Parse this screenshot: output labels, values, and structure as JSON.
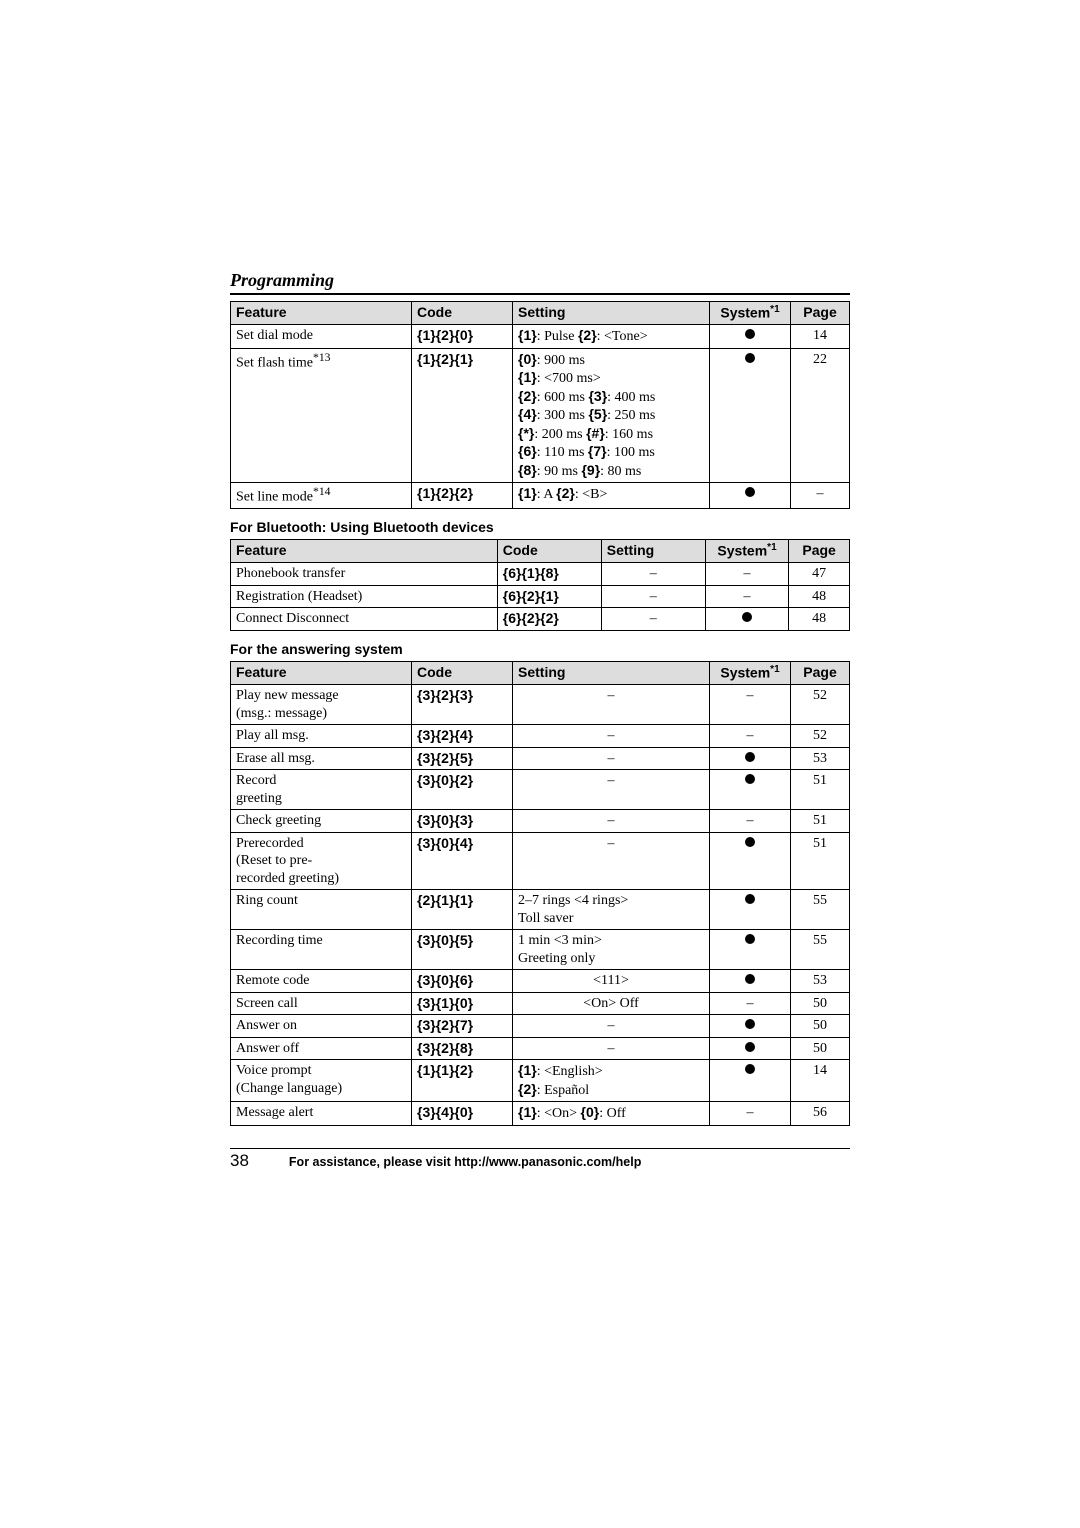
{
  "colors": {
    "page_bg": "#ffffff",
    "text": "#000000",
    "header_bg": "#dddddd",
    "border": "#000000"
  },
  "typography": {
    "body_family": "Times New Roman",
    "body_size_pt": 10.5,
    "heading_italic": true,
    "heading_bold": true,
    "label_family": "Arial"
  },
  "heading": "Programming",
  "col_labels": {
    "feature": "Feature",
    "code": "Code",
    "setting": "Setting",
    "system": "System",
    "system_sup": "*1",
    "page": "Page"
  },
  "dash": "–",
  "tables": {
    "first": {
      "cols": [
        "feature",
        "code",
        "setting",
        "system",
        "page"
      ],
      "rows": [
        {
          "feature": "Set dial mode",
          "code_keys": [
            "1",
            "2",
            "0"
          ],
          "setting_parts": [
            {
              "key": "1",
              "text": ": Pulse"
            },
            {
              "key": "2",
              "text": ": <Tone>"
            }
          ],
          "system": "dot",
          "page": "14"
        },
        {
          "feature_html": "Set flash time<sup>*13</sup>",
          "code_keys": [
            "1",
            "2",
            "1"
          ],
          "setting_lines": [
            [
              {
                "key": "0",
                "text": ": 900 ms"
              }
            ],
            [
              {
                "key": "1",
                "text": ": <700 ms>"
              }
            ],
            [
              {
                "key": "2",
                "text": ": 600 ms"
              },
              {
                "key": "3",
                "text": ": 400 ms"
              }
            ],
            [
              {
                "key": "4",
                "text": ": 300 ms"
              },
              {
                "key": "5",
                "text": ": 250 ms"
              }
            ],
            [
              {
                "key": "*",
                "text": ": 200 ms"
              },
              {
                "key": "#",
                "text": ": 160 ms"
              }
            ],
            [
              {
                "key": "6",
                "text": ": 110 ms"
              },
              {
                "key": "7",
                "text": ": 100 ms"
              }
            ],
            [
              {
                "key": "8",
                "text": ": 90 ms"
              },
              {
                "key": "9",
                "text": ": 80 ms"
              }
            ]
          ],
          "system": "dot",
          "page": "22"
        },
        {
          "feature_html": "Set line mode<sup>*14</sup>",
          "code_keys": [
            "1",
            "2",
            "2"
          ],
          "setting_parts": [
            {
              "key": "1",
              "text": ": A "
            },
            {
              "key": "2",
              "text": ": <B>"
            }
          ],
          "system": "dot",
          "page": "–"
        }
      ]
    },
    "bluetooth": {
      "title": "For Bluetooth: Using Bluetooth devices",
      "cols": [
        "feature",
        "code",
        "setting",
        "system",
        "page"
      ],
      "rows": [
        {
          "feature": "Phonebook transfer",
          "code_keys": [
            "6",
            "1",
            "8"
          ],
          "setting": "–",
          "system": "–",
          "page": "47"
        },
        {
          "feature": "Registration       (Headset)",
          "code_keys": [
            "6",
            "2",
            "1"
          ],
          "setting": "–",
          "system": "–",
          "page": "48"
        },
        {
          "feature": "Connect       Disconnect",
          "code_keys": [
            "6",
            "2",
            "2"
          ],
          "setting": "–",
          "system": "dot",
          "page": "48"
        }
      ]
    },
    "answering": {
      "title": "For the answering system",
      "cols": [
        "feature",
        "code",
        "setting",
        "system",
        "page"
      ],
      "rows": [
        {
          "feature_lines": [
            "Play new message",
            "(msg.: message)"
          ],
          "code_keys": [
            "3",
            "2",
            "3"
          ],
          "setting": "–",
          "system": "–",
          "page": "52"
        },
        {
          "feature": "Play all msg.",
          "code_keys": [
            "3",
            "2",
            "4"
          ],
          "setting": "–",
          "system": "–",
          "page": "52"
        },
        {
          "feature": "Erase all msg.",
          "code_keys": [
            "3",
            "2",
            "5"
          ],
          "setting": "–",
          "system": "dot",
          "page": "53"
        },
        {
          "feature_lines": [
            "Record",
            "greeting"
          ],
          "code_keys": [
            "3",
            "0",
            "2"
          ],
          "setting": "–",
          "system": "dot",
          "page": "51"
        },
        {
          "feature": "Check greeting",
          "code_keys": [
            "3",
            "0",
            "3"
          ],
          "setting": "–",
          "system": "–",
          "page": "51"
        },
        {
          "feature_lines": [
            "Prerecorded",
            "(Reset to pre-",
            "recorded greeting)"
          ],
          "code_keys": [
            "3",
            "0",
            "4"
          ],
          "setting": "–",
          "system": "dot",
          "page": "51"
        },
        {
          "feature": "Ring count",
          "code_keys": [
            "2",
            "1",
            "1"
          ],
          "setting_lines": [
            [
              {
                "text": "2–7 rings   <4 rings>"
              }
            ],
            [
              {
                "text": "Toll saver"
              }
            ]
          ],
          "system": "dot",
          "page": "55"
        },
        {
          "feature": "Recording time",
          "code_keys": [
            "3",
            "0",
            "5"
          ],
          "setting_lines": [
            [
              {
                "text": "1 min   <3 min>"
              }
            ],
            [
              {
                "text": "Greeting only"
              }
            ]
          ],
          "system": "dot",
          "page": "55"
        },
        {
          "feature": "Remote code",
          "code_keys": [
            "3",
            "0",
            "6"
          ],
          "setting": "<111>",
          "system": "dot",
          "page": "53"
        },
        {
          "feature": "Screen call",
          "code_keys": [
            "3",
            "1",
            "0"
          ],
          "setting": "<On>   Off",
          "system": "–",
          "page": "50"
        },
        {
          "feature": "Answer on",
          "code_keys": [
            "3",
            "2",
            "7"
          ],
          "setting": "–",
          "system": "dot",
          "page": "50"
        },
        {
          "feature": "Answer off",
          "code_keys": [
            "3",
            "2",
            "8"
          ],
          "setting": "–",
          "system": "dot",
          "page": "50"
        },
        {
          "feature_lines": [
            "Voice prompt",
            "(Change language)"
          ],
          "code_keys": [
            "1",
            "1",
            "2"
          ],
          "setting_lines": [
            [
              {
                "key": "1",
                "text": ": <English>"
              }
            ],
            [
              {
                "key": "2",
                "text": ": Español"
              }
            ]
          ],
          "system": "dot",
          "page": "14"
        },
        {
          "feature": "Message alert",
          "code_keys": [
            "3",
            "4",
            "0"
          ],
          "setting_parts": [
            {
              "key": "1",
              "text": ": <On>  "
            },
            {
              "key": "0",
              "text": ": Off"
            }
          ],
          "system": "–",
          "page": "56"
        }
      ]
    }
  },
  "footer": {
    "page_number": "38",
    "assist_text": "For assistance, please visit http://www.panasonic.com/help"
  }
}
